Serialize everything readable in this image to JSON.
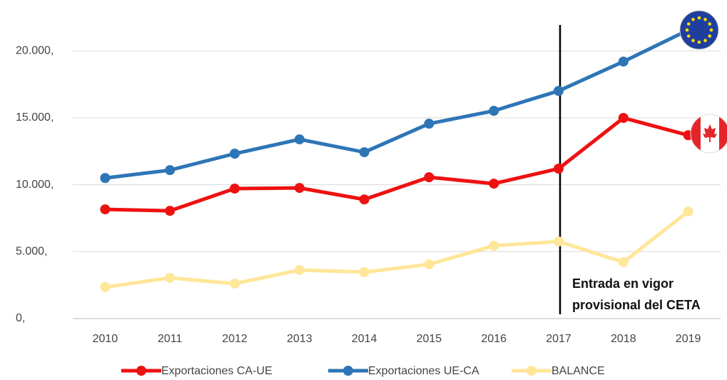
{
  "chart_data": {
    "type": "line",
    "categories": [
      "2010",
      "2011",
      "2012",
      "2013",
      "2014",
      "2015",
      "2016",
      "2017",
      "2018",
      "2019"
    ],
    "series": [
      {
        "name": "Exportaciones CA-UE",
        "color": "#ee1111",
        "values": [
          8160,
          8050,
          9710,
          9760,
          8900,
          10560,
          10080,
          11200,
          14990,
          13700
        ]
      },
      {
        "name": "Exportaciones UE-CA",
        "color": "#2e75b6",
        "values": [
          10500,
          11090,
          12320,
          13390,
          12430,
          14560,
          15520,
          17010,
          19200,
          21550
        ]
      },
      {
        "name": "BALANCE",
        "color": "#ffe699",
        "values": [
          2350,
          3040,
          2610,
          3630,
          3470,
          4050,
          5440,
          5760,
          4210,
          8000
        ]
      }
    ],
    "ylim": [
      0,
      23000
    ],
    "yticks": [
      {
        "value": 0,
        "label": "0,"
      },
      {
        "value": 5000,
        "label": "5.000,"
      },
      {
        "value": 10000,
        "label": "10.000,"
      },
      {
        "value": 15000,
        "label": "15.000,"
      },
      {
        "value": 20000,
        "label": "20.000,"
      }
    ],
    "grid": true,
    "annotation": [
      "Entrada en vigor",
      "provisional del CETA"
    ],
    "legend": "bottom"
  }
}
